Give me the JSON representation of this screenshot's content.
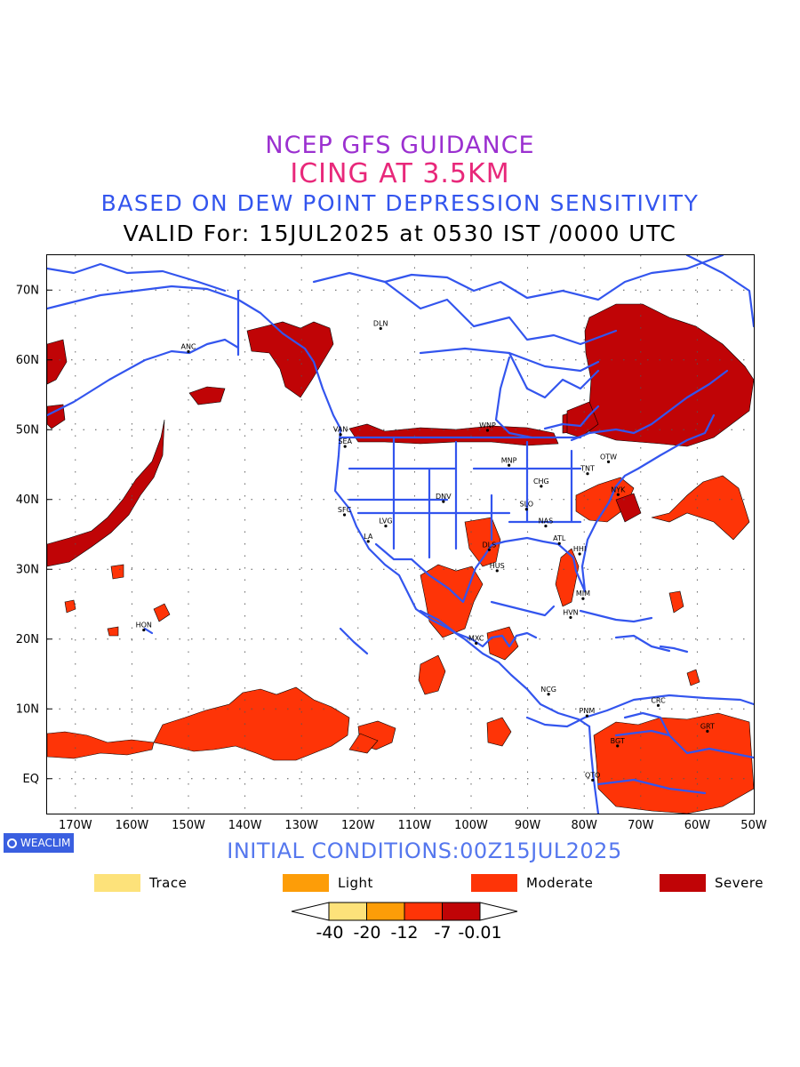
{
  "header": {
    "line1": "NCEP GFS GUIDANCE",
    "line2": "ICING AT 3.5KM",
    "line3": "BASED ON DEW POINT DEPRESSION SENSITIVITY",
    "line4": "VALID For: 15JUL2025 at 0530 IST /0000 UTC"
  },
  "map": {
    "lon_range": [
      -175,
      -50
    ],
    "lat_range": [
      -5,
      75
    ],
    "x_ticks": [
      "170W",
      "160W",
      "150W",
      "140W",
      "130W",
      "120W",
      "110W",
      "100W",
      "90W",
      "80W",
      "70W",
      "60W",
      "50W"
    ],
    "y_ticks": [
      "70N",
      "60N",
      "50N",
      "40N",
      "30N",
      "20N",
      "10N",
      "EQ"
    ],
    "gridlines": true,
    "boundary_color": "#3355ee",
    "cities": [
      {
        "name": "ANC",
        "lon": -150.0,
        "lat": 61.2
      },
      {
        "name": "DLN",
        "lon": -116.0,
        "lat": 64.5
      },
      {
        "name": "VAN",
        "lon": -123.1,
        "lat": 49.3
      },
      {
        "name": "SEA",
        "lon": -122.3,
        "lat": 47.6
      },
      {
        "name": "WNP",
        "lon": -97.1,
        "lat": 49.9
      },
      {
        "name": "OTW",
        "lon": -75.7,
        "lat": 45.4
      },
      {
        "name": "TNT",
        "lon": -79.4,
        "lat": 43.7
      },
      {
        "name": "MNP",
        "lon": -93.3,
        "lat": 44.9
      },
      {
        "name": "CHG",
        "lon": -87.6,
        "lat": 41.9
      },
      {
        "name": "NYK",
        "lon": -74.0,
        "lat": 40.7
      },
      {
        "name": "DNV",
        "lon": -104.9,
        "lat": 39.7
      },
      {
        "name": "SFC",
        "lon": -122.4,
        "lat": 37.8
      },
      {
        "name": "SLO",
        "lon": -90.2,
        "lat": 38.6
      },
      {
        "name": "LVG",
        "lon": -115.1,
        "lat": 36.2
      },
      {
        "name": "NAS",
        "lon": -86.8,
        "lat": 36.2
      },
      {
        "name": "LA",
        "lon": -118.2,
        "lat": 34.0
      },
      {
        "name": "ATL",
        "lon": -84.4,
        "lat": 33.7
      },
      {
        "name": "DLS",
        "lon": -96.8,
        "lat": 32.8
      },
      {
        "name": "HHI",
        "lon": -80.8,
        "lat": 32.2
      },
      {
        "name": "HUS",
        "lon": -95.4,
        "lat": 29.8
      },
      {
        "name": "MIM",
        "lon": -80.2,
        "lat": 25.8
      },
      {
        "name": "HVN",
        "lon": -82.4,
        "lat": 23.1
      },
      {
        "name": "HON",
        "lon": -157.9,
        "lat": 21.3
      },
      {
        "name": "MXC",
        "lon": -99.1,
        "lat": 19.4
      },
      {
        "name": "NCG",
        "lon": -86.3,
        "lat": 12.1
      },
      {
        "name": "CRC",
        "lon": -66.9,
        "lat": 10.5
      },
      {
        "name": "PNM",
        "lon": -79.5,
        "lat": 9.0
      },
      {
        "name": "GRT",
        "lon": -58.2,
        "lat": 6.8
      },
      {
        "name": "BGT",
        "lon": -74.1,
        "lat": 4.7
      },
      {
        "name": "QTO",
        "lon": -78.5,
        "lat": -0.2
      }
    ]
  },
  "branding": {
    "logo_text": "WEACLIM",
    "logo_icon": "ring-icon"
  },
  "initial_conditions": "INITIAL CONDITIONS:00Z15JUL2025",
  "legend": {
    "items": [
      {
        "label": "Trace",
        "color": "#fde27a"
      },
      {
        "label": "Light",
        "color": "#fd9d08"
      },
      {
        "label": "Moderate",
        "color": "#fe3407"
      },
      {
        "label": "Severe",
        "color": "#c00406"
      }
    ]
  },
  "colorbar": {
    "labels": [
      "-40",
      "-20",
      "-12",
      "-7",
      "-0.01"
    ],
    "colors": [
      "#fde27a",
      "#fd9d08",
      "#fe3407",
      "#c00406"
    ]
  }
}
